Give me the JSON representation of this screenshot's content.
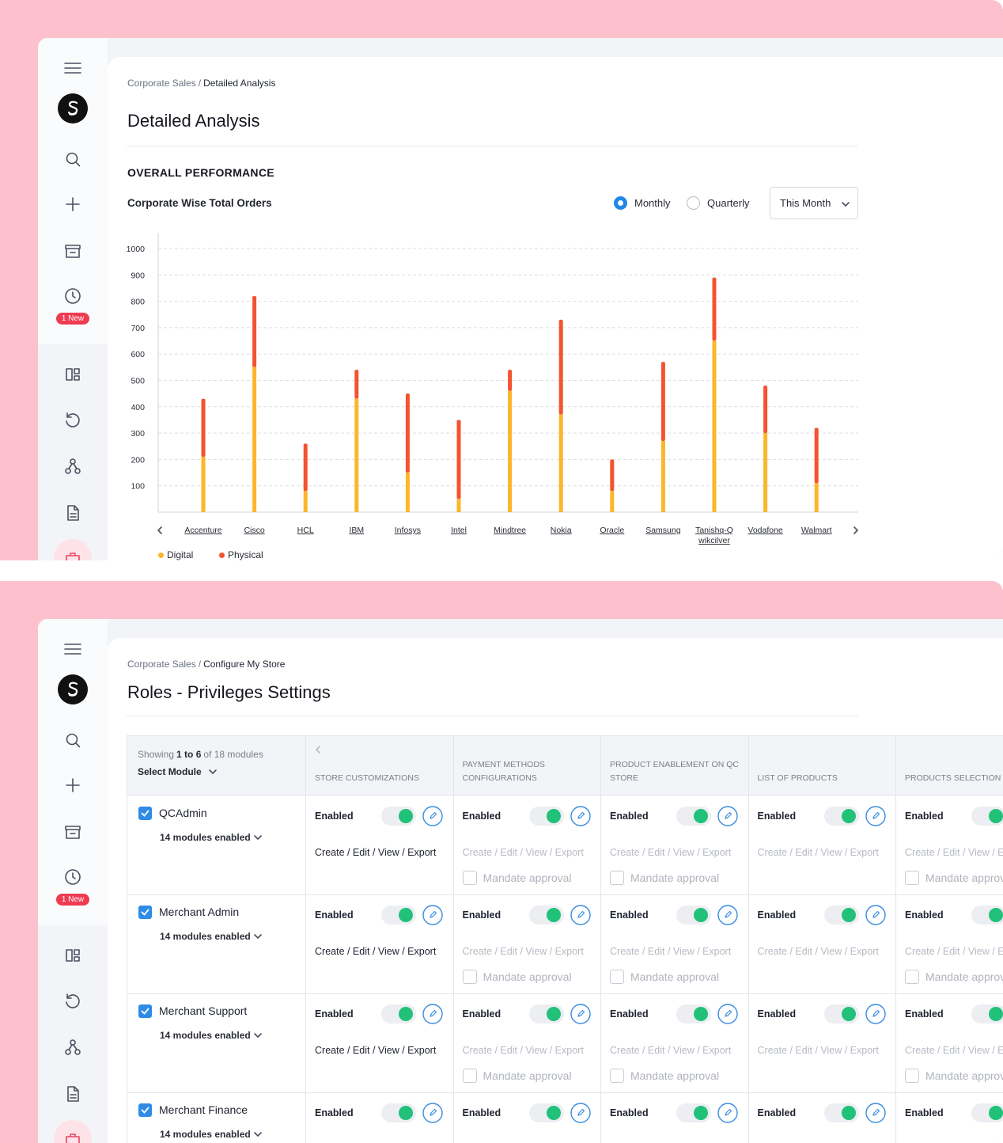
{
  "top": {
    "badge": "1 New",
    "breadcrumb": {
      "parent": "Corporate Sales",
      "separator": "/",
      "current": "Detailed Analysis"
    },
    "title": "Detailed Analysis",
    "section": "OVERALL PERFORMANCE",
    "period_options": [
      "Monthly",
      "Quarterly"
    ],
    "selected_period": 0,
    "range_dropdown": "This Month"
  },
  "chart_data": {
    "type": "bar",
    "stacked": true,
    "title": "Corporate Wise Total Orders",
    "categories": [
      "Accenture",
      "Cisco",
      "HCL",
      "IBM",
      "Infosys",
      "Intel",
      "Mindtree",
      "Nokia",
      "Oracle",
      "Samsung",
      "Tanishq-Q wikcilver",
      "Vodafone",
      "Walmart"
    ],
    "series": [
      {
        "name": "Digital",
        "color": "#fbb62a",
        "values": [
          210,
          550,
          80,
          430,
          150,
          50,
          460,
          370,
          80,
          270,
          650,
          300,
          110
        ]
      },
      {
        "name": "Physical",
        "color": "#f5532f",
        "values": [
          220,
          270,
          180,
          110,
          300,
          300,
          80,
          360,
          120,
          300,
          240,
          180,
          210
        ]
      }
    ],
    "ylim": [
      0,
      1000
    ],
    "yticks": [
      100,
      200,
      300,
      400,
      500,
      600,
      700,
      800,
      900,
      1000
    ],
    "grid": true,
    "legend": "bottom-left"
  },
  "bottom": {
    "badge": "1 New",
    "breadcrumb": {
      "parent": "Corporate Sales",
      "separator": "/",
      "current": "Configure My Store"
    },
    "title": "Roles - Privileges Settings",
    "table": {
      "showing": "Showing",
      "range": "1 to 6",
      "total": "of 18 modules",
      "select": "Select Module",
      "columns": [
        "STORE CUSTOMIZATIONS",
        "PAYMENT METHODS CONFIGURATIONS",
        "PRODUCT ENABLEMENT ON QC STORE",
        "LIST OF PRODUCTS",
        "PRODUCTS SELECTION"
      ],
      "rows": [
        {
          "role": "QCAdmin",
          "modules": "14 modules enabled",
          "cells": [
            {
              "status": "Enabled",
              "permissions": "Create / Edit / View / Export"
            },
            {
              "status": "Enabled",
              "permissions": "Create / Edit / View / Export",
              "mandate": "Mandate approval"
            },
            {
              "status": "Enabled",
              "permissions": "Create / Edit / View / Export",
              "mandate": "Mandate approval"
            },
            {
              "status": "Enabled",
              "permissions": "Create / Edit / View / Export"
            },
            {
              "status": "Enabled",
              "permissions": "Create / Edit / View / Export",
              "mandate": "Mandate approval"
            }
          ]
        },
        {
          "role": "Merchant Admin",
          "modules": "14 modules enabled",
          "cells": [
            {
              "status": "Enabled",
              "permissions": "Create / Edit / View / Export"
            },
            {
              "status": "Enabled",
              "permissions": "Create / Edit / View / Export",
              "mandate": "Mandate approval"
            },
            {
              "status": "Enabled",
              "permissions": "Create / Edit / View / Export",
              "mandate": "Mandate approval"
            },
            {
              "status": "Enabled",
              "permissions": "Create / Edit / View / Export"
            },
            {
              "status": "Enabled",
              "permissions": "Create / Edit / View / Export",
              "mandate": "Mandate approval"
            }
          ]
        },
        {
          "role": "Merchant Support",
          "modules": "14 modules enabled",
          "cells": [
            {
              "status": "Enabled",
              "permissions": "Create / Edit / View / Export"
            },
            {
              "status": "Enabled",
              "permissions": "Create / Edit / View / Export",
              "mandate": "Mandate approval"
            },
            {
              "status": "Enabled",
              "permissions": "Create / Edit / View / Export",
              "mandate": "Mandate approval"
            },
            {
              "status": "Enabled",
              "permissions": "Create / Edit / View / Export"
            },
            {
              "status": "Enabled",
              "permissions": "Create / Edit / View / Export",
              "mandate": "Mandate approval"
            }
          ]
        },
        {
          "role": "Merchant Finance",
          "modules": "14 modules enabled",
          "cells": [
            {
              "status": "Enabled"
            },
            {
              "status": "Enabled"
            },
            {
              "status": "Enabled"
            },
            {
              "status": "Enabled"
            },
            {
              "status": "Enabled"
            }
          ]
        }
      ]
    }
  }
}
